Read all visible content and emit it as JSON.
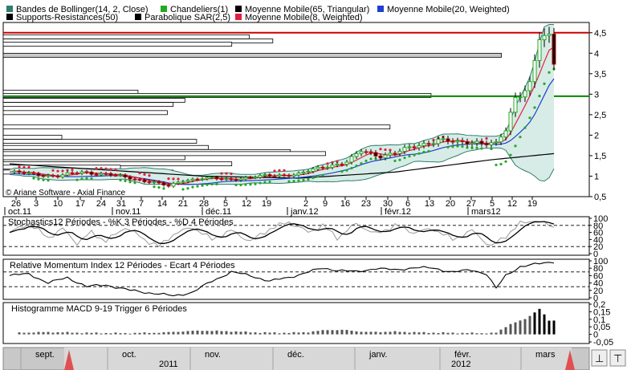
{
  "legend": [
    {
      "label": "Bandes de Bollinger(14, 2, Close)",
      "color": "#2e7d6f"
    },
    {
      "label": "Chandeliers(1)",
      "color": "#22aa22"
    },
    {
      "label": "Moyenne Mobile(65, Triangular)",
      "color": "#000000"
    },
    {
      "label": "Moyenne Mobile(20, Weighted)",
      "color": "#1f3fd0"
    },
    {
      "label": "Supports-Resistances(50)",
      "color": "#000000"
    },
    {
      "label": "Parabolique SAR(2,5)",
      "color": "#000000"
    },
    {
      "label": "Moyenne Mobile(8, Weighted)",
      "color": "#e02040"
    }
  ],
  "copyright": "© Ariane Software - Axial Finance",
  "chart_data": [
    {
      "type": "candlestick",
      "panel": "price",
      "ylim": [
        0.5,
        4.75
      ],
      "y_ticks": [
        "4,5",
        "4",
        "3,5",
        "3",
        "2,5",
        "2",
        "1,5",
        "1",
        "0,5"
      ],
      "y_tick_values": [
        4.5,
        4,
        3.5,
        3,
        2.5,
        2,
        1.5,
        1,
        0.5
      ],
      "day_ticks": [
        "26",
        "3",
        "10",
        "17",
        "24",
        "31",
        "7",
        "14",
        "21",
        "28",
        "5",
        "12",
        "19",
        "2",
        "9",
        "16",
        "23",
        "30",
        "6",
        "13",
        "20",
        "27",
        "5",
        "12",
        "19"
      ],
      "month_labels": [
        "oct.11",
        "nov.11",
        "déc.11",
        "janv.12",
        "févr.12",
        "mars12"
      ],
      "close_anchors": [
        [
          0,
          1.1
        ],
        [
          5,
          1.05
        ],
        [
          10,
          1.0
        ],
        [
          15,
          1.1
        ],
        [
          20,
          1.05
        ],
        [
          25,
          0.95
        ],
        [
          30,
          0.85
        ],
        [
          33,
          0.75
        ],
        [
          36,
          0.9
        ],
        [
          40,
          0.95
        ],
        [
          45,
          0.92
        ],
        [
          50,
          0.97
        ],
        [
          55,
          1.02
        ],
        [
          60,
          1.05
        ],
        [
          63,
          1.15
        ],
        [
          66,
          1.25
        ],
        [
          70,
          1.35
        ],
        [
          73,
          1.6
        ],
        [
          77,
          1.5
        ],
        [
          81,
          1.6
        ],
        [
          85,
          1.75
        ],
        [
          89,
          1.9
        ],
        [
          93,
          1.8
        ],
        [
          97,
          1.85
        ],
        [
          101,
          1.78
        ],
        [
          103,
          2.1
        ],
        [
          105,
          2.9
        ],
        [
          108,
          3.3
        ],
        [
          110,
          4.4
        ],
        [
          112,
          4.3
        ],
        [
          113,
          3.7
        ]
      ],
      "horizontal_levels": [
        {
          "value": 4.5,
          "color": "#cc0000"
        },
        {
          "value": 2.95,
          "color": "#008800"
        }
      ],
      "support_resistance_bars": [
        {
          "value": 4.4,
          "length": 0.42
        },
        {
          "value": 4.3,
          "length": 0.46
        },
        {
          "value": 4.22,
          "length": 0.39
        },
        {
          "value": 3.95,
          "length": 0.85
        },
        {
          "value": 3.05,
          "length": 0.23
        },
        {
          "value": 2.97,
          "length": 0.73
        },
        {
          "value": 2.85,
          "length": 0.31
        },
        {
          "value": 2.75,
          "length": 0.29
        },
        {
          "value": 2.55,
          "length": 0.28
        },
        {
          "value": 2.2,
          "length": 0.66
        },
        {
          "value": 1.95,
          "length": 0.1
        },
        {
          "value": 1.85,
          "length": 0.33
        },
        {
          "value": 1.7,
          "length": 0.35
        },
        {
          "value": 1.6,
          "length": 0.49
        },
        {
          "value": 1.55,
          "length": 0.55
        },
        {
          "value": 1.45,
          "length": 0.31
        },
        {
          "value": 1.3,
          "length": 0.39
        },
        {
          "value": 1.22,
          "length": 0.2
        },
        {
          "value": 1.1,
          "length": 0.29
        }
      ]
    },
    {
      "type": "line",
      "panel": "stochastics",
      "title": "Stochastics12 Périodes  -  %K 3 Périodes  -  %D 4 Périodes",
      "ylim": [
        0,
        100
      ],
      "y_ticks": [
        "100",
        "80",
        "60",
        "40",
        "20",
        "0"
      ],
      "y_tick_values": [
        100,
        80,
        60,
        40,
        20,
        0
      ],
      "reference_lines": [
        80,
        20
      ],
      "k_anchors": [
        [
          0,
          60
        ],
        [
          4,
          85
        ],
        [
          8,
          45
        ],
        [
          11,
          70
        ],
        [
          14,
          30
        ],
        [
          17,
          60
        ],
        [
          20,
          35
        ],
        [
          24,
          75
        ],
        [
          28,
          40
        ],
        [
          31,
          20
        ],
        [
          34,
          55
        ],
        [
          38,
          75
        ],
        [
          42,
          40
        ],
        [
          46,
          65
        ],
        [
          50,
          35
        ],
        [
          54,
          70
        ],
        [
          58,
          90
        ],
        [
          62,
          60
        ],
        [
          65,
          80
        ],
        [
          68,
          45
        ],
        [
          72,
          85
        ],
        [
          76,
          55
        ],
        [
          80,
          80
        ],
        [
          84,
          60
        ],
        [
          88,
          70
        ],
        [
          92,
          40
        ],
        [
          96,
          65
        ],
        [
          100,
          20
        ],
        [
          103,
          50
        ],
        [
          106,
          85
        ],
        [
          109,
          95
        ],
        [
          113,
          75
        ]
      ]
    },
    {
      "type": "line",
      "panel": "rmi",
      "title": "Relative Momentum Index 12 Périodes - Ecart 4 Périodes",
      "ylim": [
        0,
        100
      ],
      "y_ticks": [
        "100",
        "80",
        "60",
        "40",
        "20",
        "0"
      ],
      "y_tick_values": [
        100,
        80,
        60,
        40,
        20,
        0
      ],
      "reference_lines": [
        70,
        30
      ],
      "anchors": [
        [
          0,
          60
        ],
        [
          4,
          65
        ],
        [
          8,
          40
        ],
        [
          12,
          55
        ],
        [
          16,
          30
        ],
        [
          20,
          35
        ],
        [
          25,
          20
        ],
        [
          30,
          12
        ],
        [
          34,
          5
        ],
        [
          38,
          15
        ],
        [
          42,
          45
        ],
        [
          46,
          70
        ],
        [
          50,
          60
        ],
        [
          54,
          45
        ],
        [
          58,
          55
        ],
        [
          62,
          70
        ],
        [
          65,
          80
        ],
        [
          68,
          75
        ],
        [
          72,
          70
        ],
        [
          76,
          80
        ],
        [
          80,
          75
        ],
        [
          84,
          82
        ],
        [
          88,
          80
        ],
        [
          92,
          70
        ],
        [
          96,
          75
        ],
        [
          99,
          65
        ],
        [
          101,
          25
        ],
        [
          103,
          60
        ],
        [
          106,
          85
        ],
        [
          110,
          92
        ],
        [
          113,
          98
        ]
      ]
    },
    {
      "type": "bar",
      "panel": "macd",
      "title": "Histogramme MACD 9-19   Trigger 6 Périodes",
      "ylim": [
        -0.05,
        0.2
      ],
      "y_ticks": [
        "0,2",
        "0,15",
        "0,1",
        "0,05",
        "0",
        "-0,05"
      ],
      "y_tick_values": [
        0.2,
        0.15,
        0.1,
        0.05,
        0,
        -0.05
      ],
      "anchors": [
        [
          0,
          0.01
        ],
        [
          8,
          0.015
        ],
        [
          16,
          0.01
        ],
        [
          24,
          0.008
        ],
        [
          32,
          0.012
        ],
        [
          36,
          0.02
        ],
        [
          40,
          0.025
        ],
        [
          46,
          0.02
        ],
        [
          52,
          0.012
        ],
        [
          58,
          0.01
        ],
        [
          62,
          0.015
        ],
        [
          66,
          0.03
        ],
        [
          70,
          0.028
        ],
        [
          74,
          0.015
        ],
        [
          80,
          0.018
        ],
        [
          86,
          0.012
        ],
        [
          92,
          0.01
        ],
        [
          98,
          0.008
        ],
        [
          101,
          0.01
        ],
        [
          104,
          0.07
        ],
        [
          107,
          0.1
        ],
        [
          110,
          0.17
        ],
        [
          112,
          0.09
        ]
      ]
    }
  ],
  "navigator": {
    "months": [
      "sept.",
      "oct.",
      "nov.",
      "déc.",
      "janv.",
      "févr.",
      "mars"
    ],
    "years": [
      "2011",
      "2012"
    ]
  }
}
